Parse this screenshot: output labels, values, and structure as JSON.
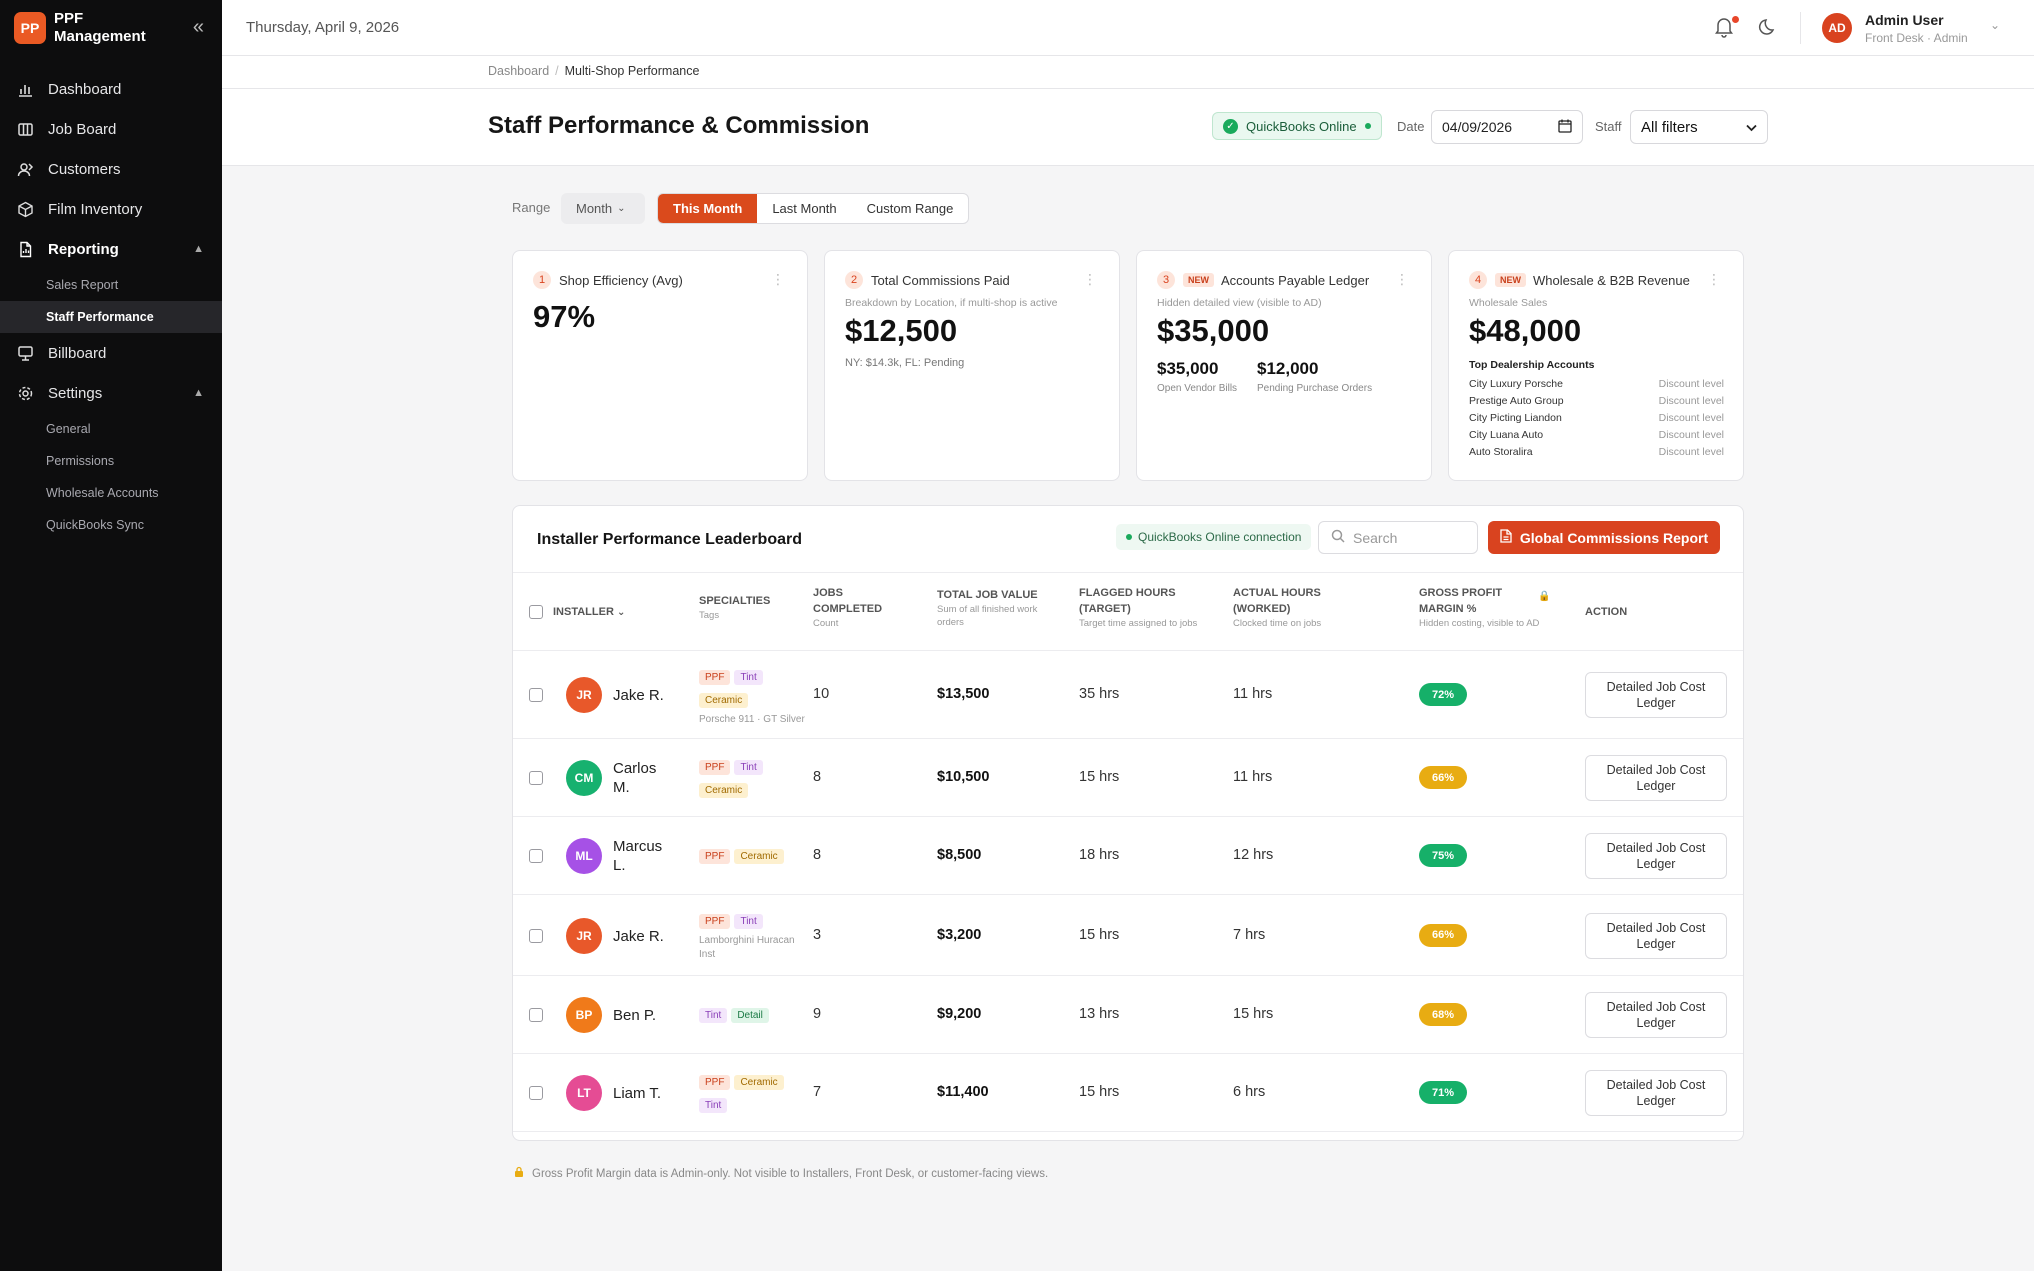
{
  "brand": {
    "logo": "PP",
    "name": "PPF Management"
  },
  "sidebar": {
    "items": [
      {
        "label": "Dashboard",
        "icon": "bar-chart-icon"
      },
      {
        "label": "Job Board",
        "icon": "kanban-icon"
      },
      {
        "label": "Customers",
        "icon": "users-icon"
      },
      {
        "label": "Film Inventory",
        "icon": "box-icon"
      },
      {
        "label": "Reporting",
        "icon": "report-icon"
      },
      {
        "label": "Billboard",
        "icon": "monitor-icon"
      },
      {
        "label": "Settings",
        "icon": "gear-icon"
      }
    ],
    "reporting_sub": [
      "Sales Report",
      "Staff Performance"
    ],
    "settings_sub": [
      "General",
      "Permissions",
      "Wholesale Accounts",
      "QuickBooks Sync"
    ]
  },
  "topbar": {
    "date": "Thursday, April 9, 2026",
    "avatar": "AD",
    "user_name": "Admin User",
    "user_role": "Front Desk · Admin"
  },
  "breadcrumb": {
    "root": "Dashboard",
    "current": "Multi-Shop Performance"
  },
  "header": {
    "title": "Staff Performance & Commission",
    "qb_status": "QuickBooks Online",
    "date_label": "Date",
    "date_value": "04/09/2026",
    "staff_label": "Staff",
    "staff_value": "All filters"
  },
  "range": {
    "label": "Range",
    "dropdown": "Month",
    "options": [
      "This Month",
      "Last Month",
      "Custom Range"
    ],
    "selected": "This Month"
  },
  "cards": [
    {
      "num": "1",
      "title": "Shop Efficiency (Avg)",
      "value": "97%"
    },
    {
      "num": "2",
      "title": "Total Commissions Paid",
      "sub": "Breakdown by Location, if multi-shop is active",
      "value": "$12,500",
      "note": "NY: $14.3k, FL: Pending"
    },
    {
      "num": "3",
      "badge": "NEW",
      "title": "Accounts Payable Ledger",
      "sub": "Hidden detailed view (visible to AD)",
      "value": "$35,000",
      "mini": [
        {
          "value": "$35,000",
          "label": "Open Vendor Bills"
        },
        {
          "value": "$12,000",
          "label": "Pending Purchase Orders"
        }
      ]
    },
    {
      "num": "4",
      "badge": "NEW",
      "title": "Wholesale & B2B Revenue",
      "sub": "Wholesale Sales",
      "value": "$48,000",
      "list_title": "Top Dealership Accounts",
      "accounts": [
        {
          "name": "City Luxury Porsche",
          "detail": "Discount level"
        },
        {
          "name": "Prestige Auto Group",
          "detail": "Discount level"
        },
        {
          "name": "City Picting Liandon",
          "detail": "Discount level"
        },
        {
          "name": "City Luana Auto",
          "detail": "Discount level"
        },
        {
          "name": "Auto Storalira",
          "detail": "Discount level"
        }
      ]
    }
  ],
  "leaderboard": {
    "title": "Installer Performance Leaderboard",
    "qb_connection": "QuickBooks Online connection",
    "search_placeholder": "Search",
    "report_button": "Global Commissions Report",
    "columns": {
      "installer": "INSTALLER",
      "specialties": "SPECIALTIES",
      "specialties_sub": "Tags",
      "jobs": "JOBS COMPLETED",
      "jobs_sub": "Count",
      "value": "TOTAL JOB VALUE",
      "value_sub": "Sum of all finished work orders",
      "flagged": "FLAGGED HOURS (TARGET)",
      "flagged_sub": "Target time assigned to jobs",
      "actual": "ACTUAL HOURS (WORKED)",
      "actual_sub": "Clocked time on jobs",
      "margin": "GROSS PROFIT MARGIN %",
      "margin_sub": "Hidden costing, visible to AD",
      "action": "ACTION"
    },
    "rows": [
      {
        "initials": "JR",
        "color": "#e8582a",
        "name": "Jake R.",
        "tags": [
          "PPF",
          "Tint",
          "Ceramic"
        ],
        "car": "Porsche 911 · GT Silver",
        "jobs": "10",
        "value": "$13,500",
        "flagged": "35 hrs",
        "actual": "11 hrs",
        "margin": "72%",
        "margin_color": "#16b069",
        "action": "Detailed Job Cost Ledger"
      },
      {
        "initials": "CM",
        "color": "#17b16f",
        "name": "Carlos M.",
        "tags": [
          "PPF",
          "Tint",
          "Ceramic"
        ],
        "car": "",
        "jobs": "8",
        "value": "$10,500",
        "flagged": "15 hrs",
        "actual": "11 hrs",
        "margin": "66%",
        "margin_color": "#e8ac12",
        "action": "Detailed Job Cost Ledger"
      },
      {
        "initials": "ML",
        "color": "#a651e6",
        "name": "Marcus L.",
        "tags": [
          "PPF",
          "Ceramic"
        ],
        "car": "",
        "jobs": "8",
        "value": "$8,500",
        "flagged": "18 hrs",
        "actual": "12 hrs",
        "margin": "75%",
        "margin_color": "#16b069",
        "action": "Detailed Job Cost Ledger"
      },
      {
        "initials": "JR",
        "color": "#e8582a",
        "name": "Jake R.",
        "tags": [
          "PPF",
          "Tint"
        ],
        "car": "Lamborghini Huracan Inst",
        "jobs": "3",
        "value": "$3,200",
        "flagged": "15 hrs",
        "actual": "7 hrs",
        "margin": "66%",
        "margin_color": "#e8ac12",
        "action": "Detailed Job Cost Ledger"
      },
      {
        "initials": "BP",
        "color": "#f07a1a",
        "name": "Ben P.",
        "tags": [
          "Tint",
          "Detail"
        ],
        "car": "",
        "jobs": "9",
        "value": "$9,200",
        "flagged": "13 hrs",
        "actual": "15 hrs",
        "margin": "68%",
        "margin_color": "#e8ac12",
        "action": "Detailed Job Cost Ledger"
      },
      {
        "initials": "LT",
        "color": "#e54c94",
        "name": "Liam T.",
        "tags": [
          "PPF",
          "Ceramic",
          "Tint"
        ],
        "car": "",
        "jobs": "7",
        "value": "$11,400",
        "flagged": "15 hrs",
        "actual": "6 hrs",
        "margin": "71%",
        "margin_color": "#16b069",
        "action": "Detailed Job Cost Ledger"
      }
    ]
  },
  "footer_note": "Gross Profit Margin data is Admin-only. Not visible to Installers, Front Desk, or customer-facing views."
}
